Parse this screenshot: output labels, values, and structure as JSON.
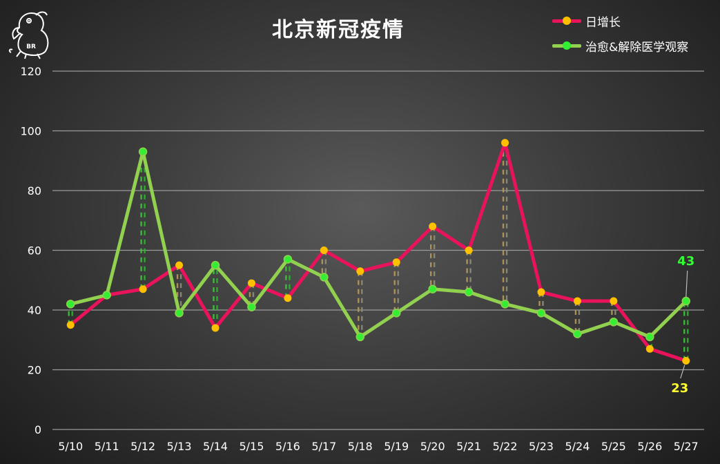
{
  "chart_data": {
    "type": "line",
    "title": "北京新冠疫情",
    "categories": [
      "5/10",
      "5/11",
      "5/12",
      "5/13",
      "5/14",
      "5/15",
      "5/16",
      "5/17",
      "5/18",
      "5/19",
      "5/20",
      "5/21",
      "5/22",
      "5/23",
      "5/24",
      "5/25",
      "5/26",
      "5/27"
    ],
    "series": [
      {
        "name": "日增长",
        "values": [
          35,
          45,
          47,
          55,
          34,
          49,
          44,
          60,
          53,
          56,
          68,
          60,
          96,
          46,
          43,
          43,
          27,
          23
        ],
        "line_color": "#e8135c",
        "marker_color": "#ffc000"
      },
      {
        "name": "治愈&解除医学观察",
        "values": [
          42,
          45,
          93,
          39,
          55,
          41,
          57,
          51,
          31,
          39,
          47,
          46,
          42,
          39,
          32,
          36,
          31,
          43
        ],
        "line_color": "#92d050",
        "marker_color": "#33ee33"
      }
    ],
    "ylim": [
      0,
      120
    ],
    "yticks": [
      0,
      20,
      40,
      60,
      80,
      100,
      120
    ],
    "grid": true,
    "legend_position": "top-right",
    "drop_lines": "dashed between series at each category",
    "end_labels": [
      {
        "series": "日增长",
        "text": "23",
        "color": "#ffff33"
      },
      {
        "series": "治愈&解除医学观察",
        "text": "43",
        "color": "#33ff33"
      }
    ]
  },
  "logo": {
    "text": "BR"
  }
}
